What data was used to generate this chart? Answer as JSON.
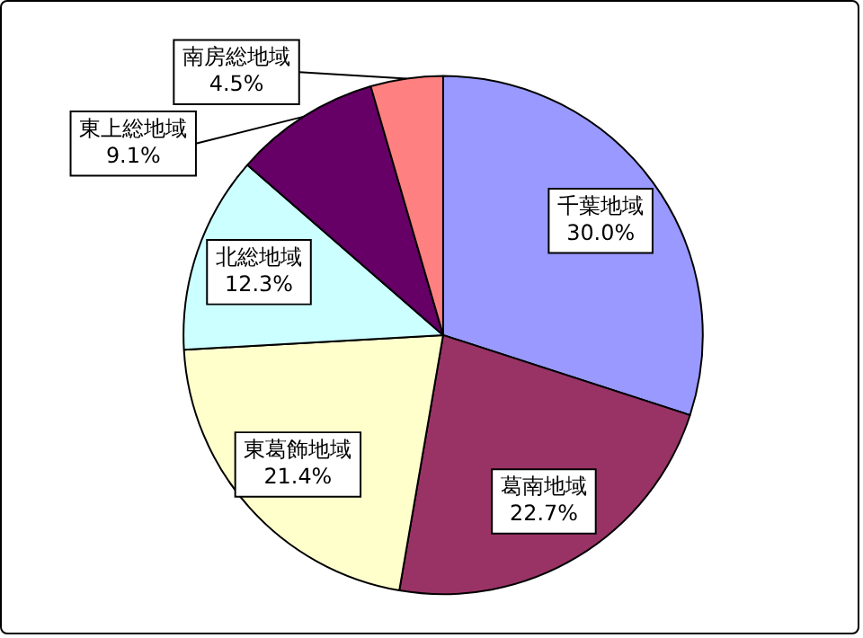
{
  "chart_data": {
    "type": "pie",
    "categories": [
      "千葉地域",
      "葛南地域",
      "東葛飾地域",
      "北総地域",
      "東上総地域",
      "南房総地域"
    ],
    "values": [
      30.0,
      22.7,
      21.4,
      12.3,
      9.1,
      4.5
    ],
    "colors": [
      "#9999ff",
      "#993366",
      "#ffffcc",
      "#ccffff",
      "#660066",
      "#ff8080"
    ],
    "value_labels": [
      "30.0%",
      "22.7%",
      "21.4%",
      "12.3%",
      "9.1%",
      "4.5%"
    ],
    "legend": false
  }
}
